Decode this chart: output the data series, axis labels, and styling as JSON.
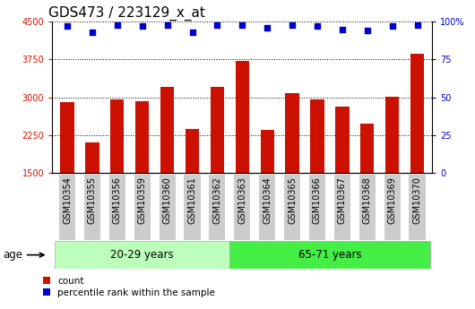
{
  "title": "GDS473 / 223129_x_at",
  "categories": [
    "GSM10354",
    "GSM10355",
    "GSM10356",
    "GSM10359",
    "GSM10360",
    "GSM10361",
    "GSM10362",
    "GSM10363",
    "GSM10364",
    "GSM10365",
    "GSM10366",
    "GSM10367",
    "GSM10368",
    "GSM10369",
    "GSM10370"
  ],
  "counts": [
    2900,
    2100,
    2950,
    2930,
    3200,
    2380,
    3200,
    3720,
    2350,
    3080,
    2960,
    2820,
    2480,
    3020,
    3870
  ],
  "percentile_ranks": [
    97,
    93,
    98,
    97,
    98,
    93,
    98,
    98,
    96,
    98,
    97,
    95,
    94,
    97,
    98
  ],
  "ylim_left": [
    1500,
    4500
  ],
  "ylim_right": [
    0,
    100
  ],
  "yticks_left": [
    1500,
    2250,
    3000,
    3750,
    4500
  ],
  "yticks_right": [
    0,
    25,
    50,
    75,
    100
  ],
  "bar_color": "#cc1100",
  "dot_color": "#0000cc",
  "grid_color": "#000000",
  "tick_bg_color": "#cccccc",
  "group1_label": "20-29 years",
  "group2_label": "65-71 years",
  "group1_color": "#bbffbb",
  "group2_color": "#44ee44",
  "group_label": "age",
  "group1_count": 7,
  "group2_count": 8,
  "legend_count_label": "count",
  "legend_pct_label": "percentile rank within the sample",
  "title_fontsize": 11,
  "tick_fontsize": 7
}
